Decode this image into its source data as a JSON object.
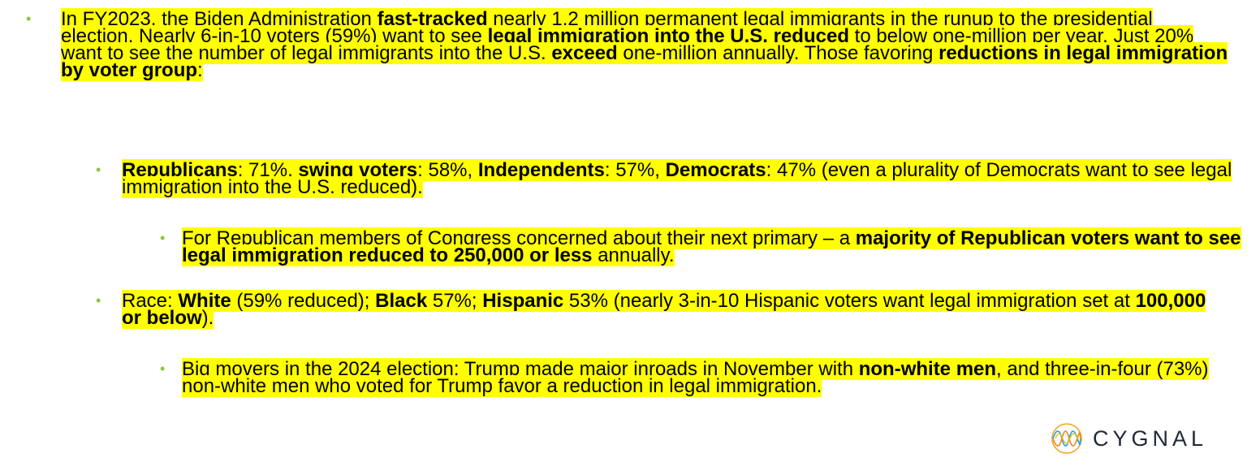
{
  "bullets": [
    {
      "id": "b1",
      "segments": [
        {
          "t": "In FY2023, the Biden Administration ",
          "b": false
        },
        {
          "t": "fast-tracked",
          "b": true
        },
        {
          "t": " nearly 1.2 million permanent legal immigrants in the runup to the presidential election. Nearly 6-in-10 voters (59%) want to see ",
          "b": false
        },
        {
          "t": "legal immigration into the U.S. reduced",
          "b": true
        },
        {
          "t": " to below one-million per year. Just 20% want to see the number of legal immigrants into the U.S. ",
          "b": false
        },
        {
          "t": "exceed",
          "b": true
        },
        {
          "t": " one-million annually. Those favoring ",
          "b": false
        },
        {
          "t": "reductions in legal immigration by voter group",
          "b": true
        },
        {
          "t": ":",
          "b": false
        }
      ]
    },
    {
      "id": "b2",
      "segments": [
        {
          "t": "Republicans",
          "b": true
        },
        {
          "t": ": 71%, ",
          "b": false
        },
        {
          "t": "swing voters",
          "b": true
        },
        {
          "t": ": 58%, ",
          "b": false
        },
        {
          "t": "Independents",
          "b": true
        },
        {
          "t": ": 57%, ",
          "b": false
        },
        {
          "t": "Democrats",
          "b": true
        },
        {
          "t": ": 47% (even a plurality of Democrats want to see legal immigration into the U.S. reduced).",
          "b": false
        }
      ]
    },
    {
      "id": "b3",
      "segments": [
        {
          "t": "For Republican members of Congress concerned about their next primary – a ",
          "b": false
        },
        {
          "t": "majority of Republican voters want to see legal immigration reduced to 250,000 or less",
          "b": true
        },
        {
          "t": " annually.",
          "b": false
        }
      ]
    },
    {
      "id": "b4",
      "segments": [
        {
          "t": "Race: ",
          "b": false
        },
        {
          "t": "White",
          "b": true
        },
        {
          "t": " (59% reduced); ",
          "b": false
        },
        {
          "t": "Black",
          "b": true
        },
        {
          "t": " 57%; ",
          "b": false
        },
        {
          "t": "Hispanic",
          "b": true
        },
        {
          "t": " 53% (nearly 3-in-10 Hispanic voters want legal immigration set at ",
          "b": false
        },
        {
          "t": "100,000 or below",
          "b": true
        },
        {
          "t": ").",
          "b": false
        }
      ]
    },
    {
      "id": "b5",
      "segments": [
        {
          "t": "Big movers in the 2024 election: Trump made major inroads in November with ",
          "b": false
        },
        {
          "t": "non-white men",
          "b": true
        },
        {
          "t": ", and three-in-four (73%) non-white men who voted for Trump favor a reduction in legal immigration.",
          "b": false
        }
      ]
    }
  ],
  "bullet_symbol": "•",
  "logo": {
    "text": "CYGNAL",
    "icon": "cygnal-waveform-logo-icon"
  },
  "colors": {
    "highlight": "#ffff00",
    "bullet": "#8cc63f",
    "logo_text": "#222a36"
  }
}
